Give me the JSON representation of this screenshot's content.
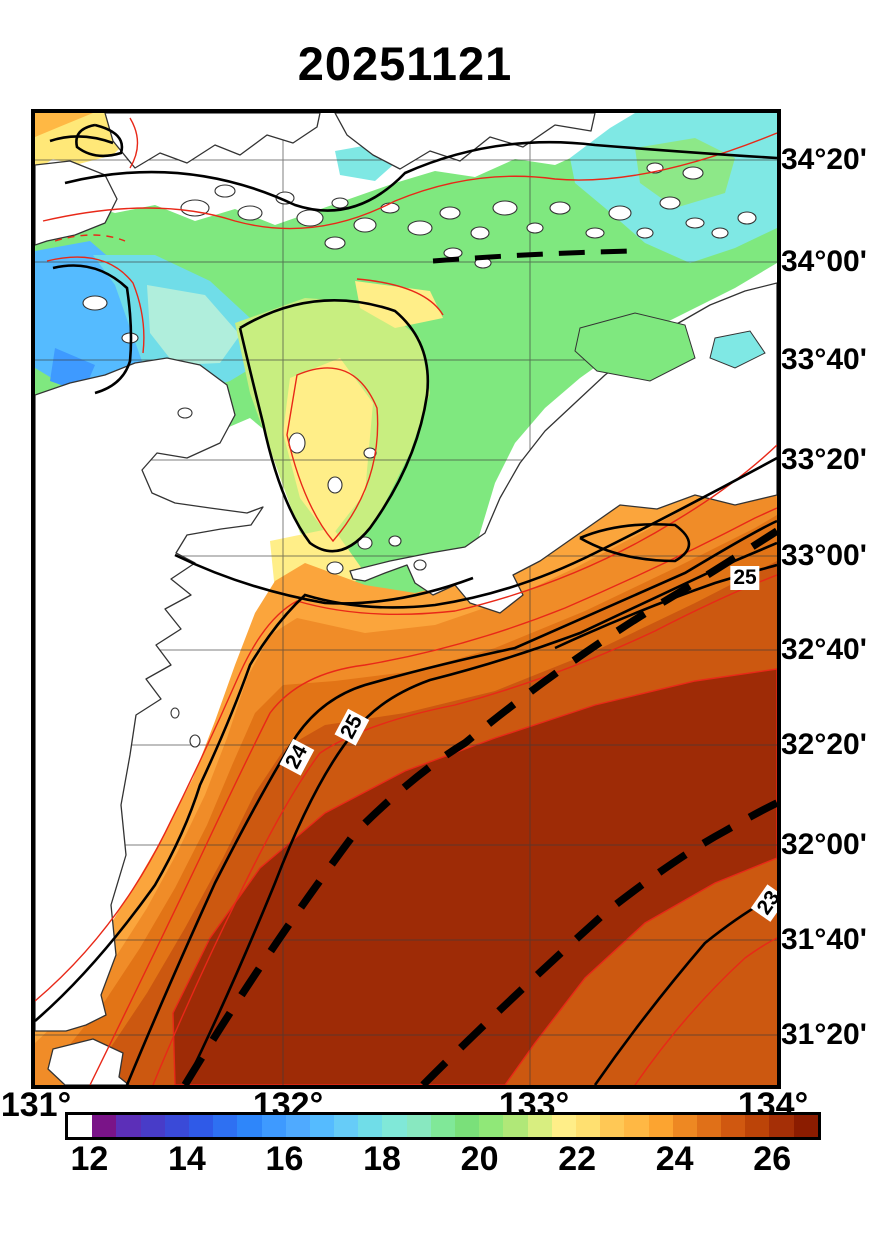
{
  "title": "20251121",
  "map": {
    "lat_labels": [
      "34°20'",
      "34°00'",
      "33°40'",
      "33°20'",
      "33°00'",
      "32°40'",
      "32°20'",
      "32°00'",
      "31°40'",
      "31°20'"
    ],
    "lon_labels": [
      "131°",
      "132°",
      "133°",
      "134°"
    ],
    "contour_labels": [
      {
        "text": "24"
      },
      {
        "text": "25"
      },
      {
        "text": "25"
      },
      {
        "text": "23"
      }
    ]
  },
  "colorbar": {
    "tick_labels": [
      "12",
      "14",
      "16",
      "18",
      "20",
      "22",
      "24",
      "26"
    ],
    "palette": [
      "#FFFFFF",
      "#7A1488",
      "#5C2FB8",
      "#483CC8",
      "#3A4AD8",
      "#2F5AE8",
      "#2E70F2",
      "#2E86FA",
      "#3E9AFF",
      "#4FAAFF",
      "#55BBFF",
      "#66CCF8",
      "#70DDE8",
      "#80E8D8",
      "#88E8C0",
      "#80E898",
      "#7AE07A",
      "#90E878",
      "#B0E878",
      "#D8EE80",
      "#FFEE88",
      "#FFE070",
      "#FFC855",
      "#FFB844",
      "#FCA430",
      "#EE8822",
      "#E07018",
      "#D05810",
      "#BC4408",
      "#A52F06",
      "#8B1C00"
    ]
  },
  "chart_data": {
    "type": "heatmap",
    "title": "20251121",
    "x_tick_labels": [
      "131°",
      "132°",
      "133°",
      "134°"
    ],
    "y_tick_labels": [
      "34°20'",
      "34°00'",
      "33°40'",
      "33°20'",
      "33°00'",
      "32°40'",
      "32°20'",
      "32°00'",
      "31°40'",
      "31°20'"
    ],
    "colorbar_ticks": [
      12,
      14,
      16,
      18,
      20,
      22,
      24,
      26
    ],
    "colorbar_step": 0.5,
    "labeled_contours": [
      24,
      25,
      25,
      23
    ],
    "grid": true,
    "legend_position": "bottom"
  },
  "colors": {
    "frame": "#000000",
    "contour_major": "#000000",
    "contour_minor": "#E82818",
    "dashed_front": "#000000",
    "land": "#FFFFFF"
  }
}
